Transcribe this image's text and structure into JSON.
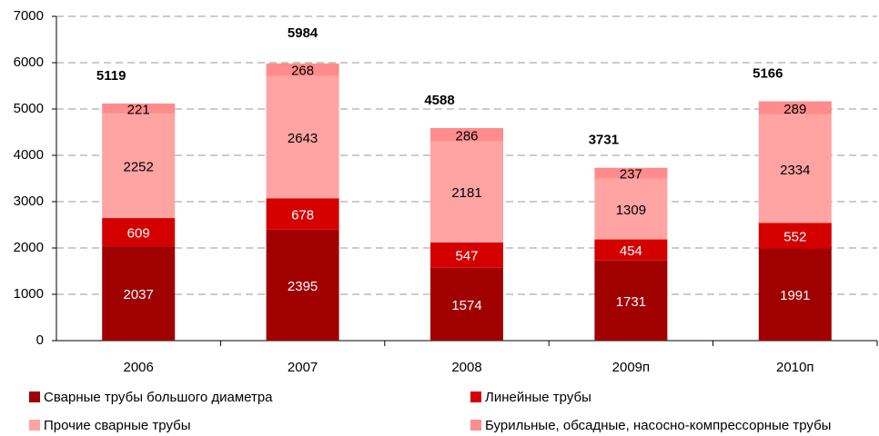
{
  "chart_data": {
    "type": "stacked_bar",
    "categories": [
      "2006",
      "2007",
      "2008",
      "2009п",
      "2010п"
    ],
    "series": [
      {
        "name": "Сварные трубы большого диаметра",
        "color": "#a00000",
        "values": [
          2037,
          2395,
          1574,
          1731,
          1991
        ]
      },
      {
        "name": "Линейные трубы",
        "color": "#d40000",
        "values": [
          609,
          678,
          547,
          454,
          552
        ]
      },
      {
        "name": "Прочие сварные трубы",
        "color": "#ffa3a3",
        "values": [
          2252,
          2643,
          2181,
          1309,
          2334
        ]
      },
      {
        "name": "Бурильные, обсадные, насосно-компрессорные трубы",
        "color": "#ff8c8c",
        "values": [
          221,
          268,
          286,
          237,
          289
        ]
      }
    ],
    "totals": [
      5119,
      5984,
      4588,
      3731,
      5166
    ],
    "ylim": [
      0,
      7000
    ],
    "yticks": [
      0,
      1000,
      2000,
      3000,
      4000,
      5000,
      6000,
      7000
    ],
    "grid": true
  }
}
